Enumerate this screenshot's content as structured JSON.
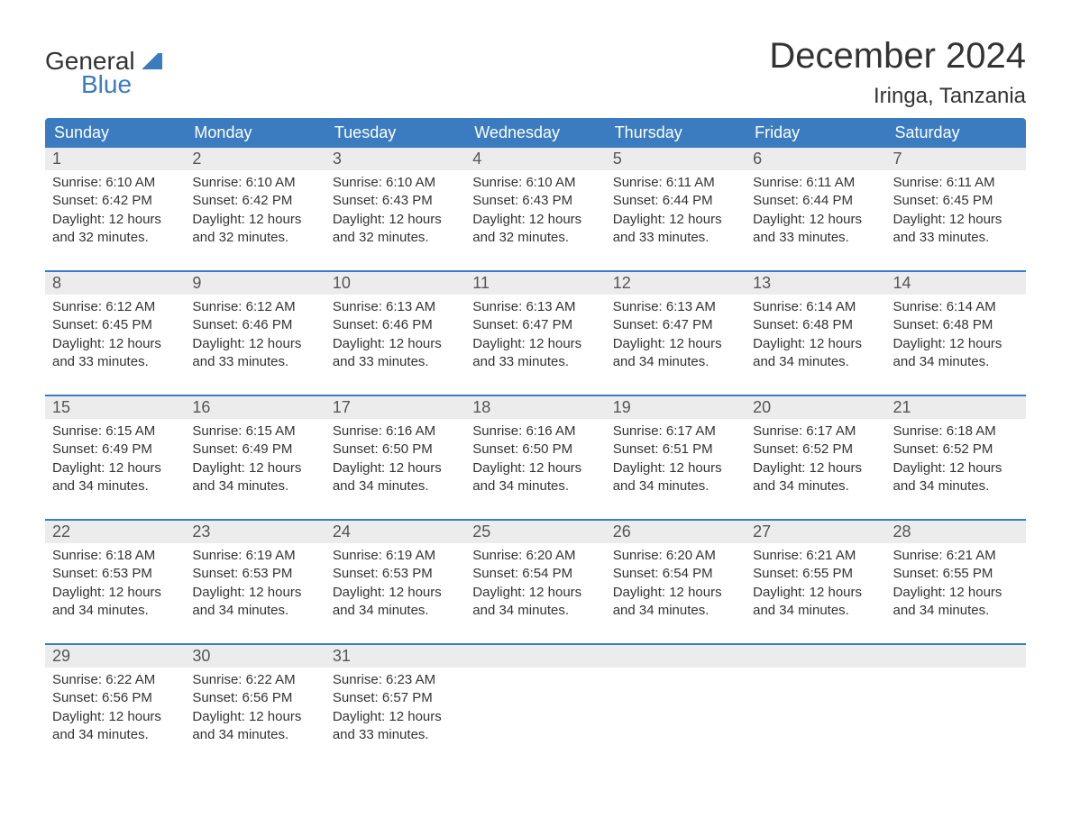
{
  "logo": {
    "general": "General",
    "blue": "Blue"
  },
  "title": {
    "month": "December 2024",
    "location": "Iringa, Tanzania"
  },
  "colors": {
    "header_bg": "#3b7bbf",
    "header_text": "#ffffff",
    "day_number_bg": "#ececec",
    "day_number_text": "#555555",
    "detail_text": "#333333",
    "row_border": "#3b7bbf",
    "page_bg": "#ffffff"
  },
  "day_headers": [
    "Sunday",
    "Monday",
    "Tuesday",
    "Wednesday",
    "Thursday",
    "Friday",
    "Saturday"
  ],
  "weeks": [
    [
      {
        "day": "1",
        "sunrise": "Sunrise: 6:10 AM",
        "sunset": "Sunset: 6:42 PM",
        "daylight1": "Daylight: 12 hours",
        "daylight2": "and 32 minutes."
      },
      {
        "day": "2",
        "sunrise": "Sunrise: 6:10 AM",
        "sunset": "Sunset: 6:42 PM",
        "daylight1": "Daylight: 12 hours",
        "daylight2": "and 32 minutes."
      },
      {
        "day": "3",
        "sunrise": "Sunrise: 6:10 AM",
        "sunset": "Sunset: 6:43 PM",
        "daylight1": "Daylight: 12 hours",
        "daylight2": "and 32 minutes."
      },
      {
        "day": "4",
        "sunrise": "Sunrise: 6:10 AM",
        "sunset": "Sunset: 6:43 PM",
        "daylight1": "Daylight: 12 hours",
        "daylight2": "and 32 minutes."
      },
      {
        "day": "5",
        "sunrise": "Sunrise: 6:11 AM",
        "sunset": "Sunset: 6:44 PM",
        "daylight1": "Daylight: 12 hours",
        "daylight2": "and 33 minutes."
      },
      {
        "day": "6",
        "sunrise": "Sunrise: 6:11 AM",
        "sunset": "Sunset: 6:44 PM",
        "daylight1": "Daylight: 12 hours",
        "daylight2": "and 33 minutes."
      },
      {
        "day": "7",
        "sunrise": "Sunrise: 6:11 AM",
        "sunset": "Sunset: 6:45 PM",
        "daylight1": "Daylight: 12 hours",
        "daylight2": "and 33 minutes."
      }
    ],
    [
      {
        "day": "8",
        "sunrise": "Sunrise: 6:12 AM",
        "sunset": "Sunset: 6:45 PM",
        "daylight1": "Daylight: 12 hours",
        "daylight2": "and 33 minutes."
      },
      {
        "day": "9",
        "sunrise": "Sunrise: 6:12 AM",
        "sunset": "Sunset: 6:46 PM",
        "daylight1": "Daylight: 12 hours",
        "daylight2": "and 33 minutes."
      },
      {
        "day": "10",
        "sunrise": "Sunrise: 6:13 AM",
        "sunset": "Sunset: 6:46 PM",
        "daylight1": "Daylight: 12 hours",
        "daylight2": "and 33 minutes."
      },
      {
        "day": "11",
        "sunrise": "Sunrise: 6:13 AM",
        "sunset": "Sunset: 6:47 PM",
        "daylight1": "Daylight: 12 hours",
        "daylight2": "and 33 minutes."
      },
      {
        "day": "12",
        "sunrise": "Sunrise: 6:13 AM",
        "sunset": "Sunset: 6:47 PM",
        "daylight1": "Daylight: 12 hours",
        "daylight2": "and 34 minutes."
      },
      {
        "day": "13",
        "sunrise": "Sunrise: 6:14 AM",
        "sunset": "Sunset: 6:48 PM",
        "daylight1": "Daylight: 12 hours",
        "daylight2": "and 34 minutes."
      },
      {
        "day": "14",
        "sunrise": "Sunrise: 6:14 AM",
        "sunset": "Sunset: 6:48 PM",
        "daylight1": "Daylight: 12 hours",
        "daylight2": "and 34 minutes."
      }
    ],
    [
      {
        "day": "15",
        "sunrise": "Sunrise: 6:15 AM",
        "sunset": "Sunset: 6:49 PM",
        "daylight1": "Daylight: 12 hours",
        "daylight2": "and 34 minutes."
      },
      {
        "day": "16",
        "sunrise": "Sunrise: 6:15 AM",
        "sunset": "Sunset: 6:49 PM",
        "daylight1": "Daylight: 12 hours",
        "daylight2": "and 34 minutes."
      },
      {
        "day": "17",
        "sunrise": "Sunrise: 6:16 AM",
        "sunset": "Sunset: 6:50 PM",
        "daylight1": "Daylight: 12 hours",
        "daylight2": "and 34 minutes."
      },
      {
        "day": "18",
        "sunrise": "Sunrise: 6:16 AM",
        "sunset": "Sunset: 6:50 PM",
        "daylight1": "Daylight: 12 hours",
        "daylight2": "and 34 minutes."
      },
      {
        "day": "19",
        "sunrise": "Sunrise: 6:17 AM",
        "sunset": "Sunset: 6:51 PM",
        "daylight1": "Daylight: 12 hours",
        "daylight2": "and 34 minutes."
      },
      {
        "day": "20",
        "sunrise": "Sunrise: 6:17 AM",
        "sunset": "Sunset: 6:52 PM",
        "daylight1": "Daylight: 12 hours",
        "daylight2": "and 34 minutes."
      },
      {
        "day": "21",
        "sunrise": "Sunrise: 6:18 AM",
        "sunset": "Sunset: 6:52 PM",
        "daylight1": "Daylight: 12 hours",
        "daylight2": "and 34 minutes."
      }
    ],
    [
      {
        "day": "22",
        "sunrise": "Sunrise: 6:18 AM",
        "sunset": "Sunset: 6:53 PM",
        "daylight1": "Daylight: 12 hours",
        "daylight2": "and 34 minutes."
      },
      {
        "day": "23",
        "sunrise": "Sunrise: 6:19 AM",
        "sunset": "Sunset: 6:53 PM",
        "daylight1": "Daylight: 12 hours",
        "daylight2": "and 34 minutes."
      },
      {
        "day": "24",
        "sunrise": "Sunrise: 6:19 AM",
        "sunset": "Sunset: 6:53 PM",
        "daylight1": "Daylight: 12 hours",
        "daylight2": "and 34 minutes."
      },
      {
        "day": "25",
        "sunrise": "Sunrise: 6:20 AM",
        "sunset": "Sunset: 6:54 PM",
        "daylight1": "Daylight: 12 hours",
        "daylight2": "and 34 minutes."
      },
      {
        "day": "26",
        "sunrise": "Sunrise: 6:20 AM",
        "sunset": "Sunset: 6:54 PM",
        "daylight1": "Daylight: 12 hours",
        "daylight2": "and 34 minutes."
      },
      {
        "day": "27",
        "sunrise": "Sunrise: 6:21 AM",
        "sunset": "Sunset: 6:55 PM",
        "daylight1": "Daylight: 12 hours",
        "daylight2": "and 34 minutes."
      },
      {
        "day": "28",
        "sunrise": "Sunrise: 6:21 AM",
        "sunset": "Sunset: 6:55 PM",
        "daylight1": "Daylight: 12 hours",
        "daylight2": "and 34 minutes."
      }
    ],
    [
      {
        "day": "29",
        "sunrise": "Sunrise: 6:22 AM",
        "sunset": "Sunset: 6:56 PM",
        "daylight1": "Daylight: 12 hours",
        "daylight2": "and 34 minutes."
      },
      {
        "day": "30",
        "sunrise": "Sunrise: 6:22 AM",
        "sunset": "Sunset: 6:56 PM",
        "daylight1": "Daylight: 12 hours",
        "daylight2": "and 34 minutes."
      },
      {
        "day": "31",
        "sunrise": "Sunrise: 6:23 AM",
        "sunset": "Sunset: 6:57 PM",
        "daylight1": "Daylight: 12 hours",
        "daylight2": "and 33 minutes."
      },
      {
        "empty": true
      },
      {
        "empty": true
      },
      {
        "empty": true
      },
      {
        "empty": true
      }
    ]
  ]
}
